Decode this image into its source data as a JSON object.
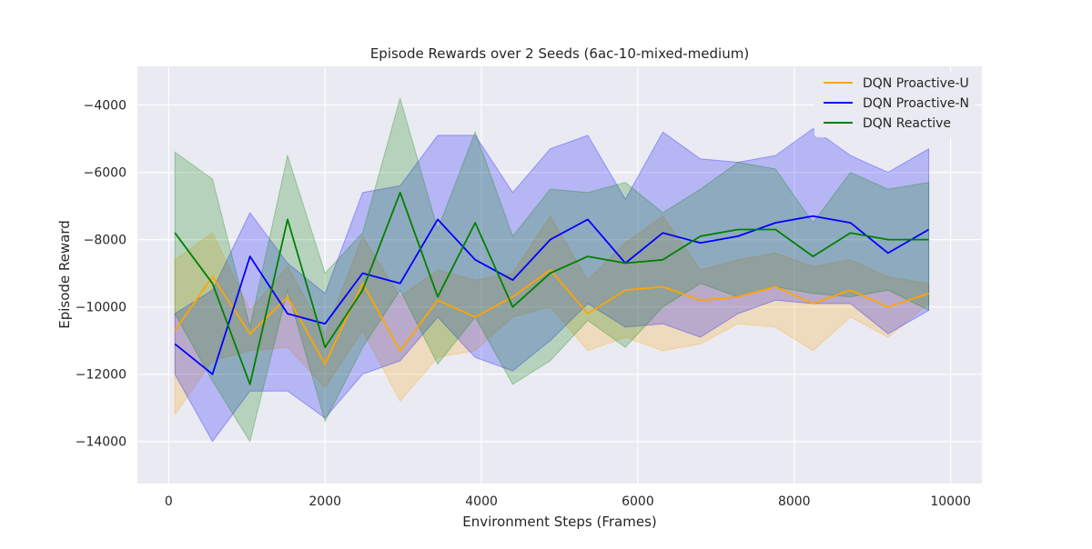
{
  "chart_data": {
    "type": "line",
    "title": "Episode Rewards over 2 Seeds (6ac-10-mixed-medium)",
    "xlabel": "Environment Steps (Frames)",
    "ylabel": "Episode Reward",
    "xlim": [
      -400,
      10400
    ],
    "ylim": [
      -15250,
      -2850
    ],
    "xticks": [
      0,
      2000,
      4000,
      6000,
      8000,
      10000
    ],
    "xtick_labels": [
      "0",
      "2000",
      "4000",
      "6000",
      "8000",
      "10000"
    ],
    "yticks": [
      -14000,
      -12000,
      -10000,
      -8000,
      -6000,
      -4000
    ],
    "ytick_labels": [
      "−14000",
      "−12000",
      "−10000",
      "−8000",
      "−6000",
      "−4000"
    ],
    "grid": true,
    "legend_position": "top-right",
    "x": [
      80,
      560,
      1040,
      1520,
      2000,
      2480,
      2960,
      3440,
      3920,
      4400,
      4880,
      5360,
      5840,
      6320,
      6800,
      7280,
      7760,
      8240,
      8720,
      9200,
      9720
    ],
    "series": [
      {
        "name": "DQN Proactive-U",
        "color": "#ffa500",
        "values": [
          -10700,
          -9100,
          -10800,
          -9700,
          -11700,
          -9300,
          -11300,
          -9800,
          -10300,
          -9700,
          -8900,
          -10200,
          -9500,
          -9400,
          -9800,
          -9700,
          -9400,
          -9900,
          -9500,
          -10000,
          -9600
        ],
        "lower": [
          -13200,
          -11600,
          -11300,
          -11200,
          -12400,
          -10700,
          -12800,
          -11500,
          -11300,
          -10300,
          -10000,
          -11300,
          -10900,
          -11300,
          -11100,
          -10500,
          -10600,
          -11300,
          -10300,
          -10900,
          -9900
        ],
        "upper": [
          -8600,
          -7800,
          -10100,
          -8800,
          -10800,
          -7900,
          -9700,
          -8900,
          -9200,
          -9000,
          -7300,
          -9200,
          -8100,
          -7300,
          -8900,
          -8600,
          -8400,
          -8800,
          -8600,
          -9100,
          -9300
        ]
      },
      {
        "name": "DQN Proactive-N",
        "color": "#0000ff",
        "values": [
          -11100,
          -12000,
          -8500,
          -10200,
          -10500,
          -9000,
          -9300,
          -7400,
          -8600,
          -9200,
          -8000,
          -7400,
          -8700,
          -7800,
          -8100,
          -7900,
          -7500,
          -7300,
          -7500,
          -8400,
          -7700
        ],
        "lower": [
          -12000,
          -14000,
          -12500,
          -12500,
          -13300,
          -12000,
          -11600,
          -10300,
          -11500,
          -11900,
          -11000,
          -9900,
          -10600,
          -10500,
          -10900,
          -10200,
          -9800,
          -9900,
          -9900,
          -10800,
          -10100
        ],
        "upper": [
          -10200,
          -9500,
          -7200,
          -8700,
          -9600,
          -6600,
          -6400,
          -4900,
          -4900,
          -6600,
          -5300,
          -4900,
          -6800,
          -4800,
          -5600,
          -5700,
          -5500,
          -4700,
          -5500,
          -6000,
          -5300
        ]
      },
      {
        "name": "DQN Reactive",
        "color": "#008000",
        "values": [
          -7800,
          -9300,
          -12300,
          -7400,
          -11200,
          -9500,
          -6600,
          -9700,
          -7500,
          -10000,
          -9000,
          -8500,
          -8700,
          -8600,
          -7900,
          -7700,
          -7700,
          -8500,
          -7800,
          -8000,
          -8000
        ],
        "lower": [
          -10200,
          -12200,
          -14000,
          -9500,
          -13400,
          -11200,
          -9500,
          -11700,
          -10300,
          -12300,
          -11600,
          -10400,
          -11200,
          -10000,
          -9300,
          -9700,
          -9400,
          -9600,
          -9700,
          -9500,
          -10100
        ],
        "upper": [
          -5400,
          -6200,
          -10600,
          -5500,
          -9000,
          -7800,
          -3800,
          -7700,
          -4800,
          -7900,
          -6500,
          -6600,
          -6300,
          -7200,
          -6500,
          -5700,
          -5900,
          -7500,
          -6000,
          -6500,
          -6300
        ]
      }
    ]
  }
}
